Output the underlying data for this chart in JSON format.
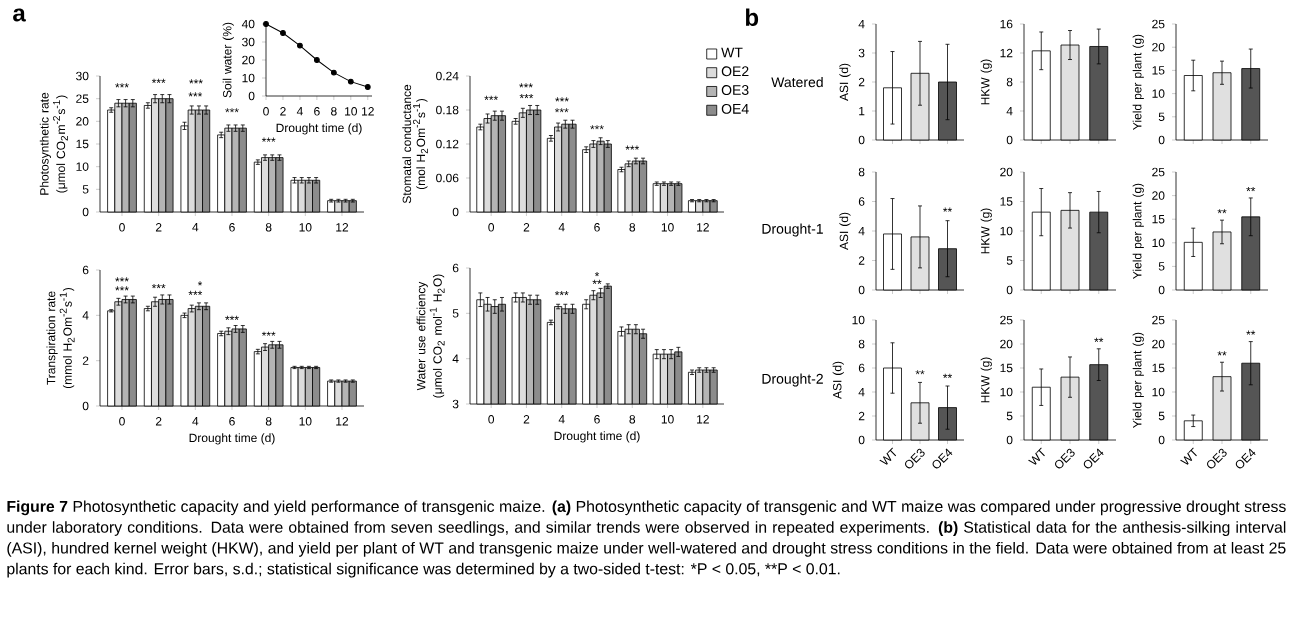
{
  "chart_data": [
    {
      "type": "bar",
      "ylabel": "Photosynthetic rate (μmol CO$_{2}$m$^{-2}$s$^{-1}$)",
      "categories": [
        "0",
        "2",
        "4",
        "6",
        "8",
        "10",
        "12"
      ],
      "ylim": [
        0,
        30
      ],
      "yticks": [
        0,
        5,
        10,
        15,
        20,
        25,
        30
      ],
      "series": [
        {
          "color": "#ffffff",
          "values": [
            22.5,
            23.5,
            19,
            17,
            11,
            7,
            2.5
          ],
          "errors": [
            0.5,
            0.6,
            0.8,
            0.6,
            0.5,
            0.6,
            0.3
          ]
        },
        {
          "color": "#dcdcdc",
          "values": [
            24,
            25,
            22.5,
            18.5,
            12,
            7,
            2.5
          ],
          "errors": [
            0.8,
            0.9,
            0.9,
            0.7,
            0.6,
            0.6,
            0.3
          ]
        },
        {
          "color": "#b4b4b4",
          "values": [
            24,
            25,
            22.5,
            18.5,
            12,
            7,
            2.5
          ],
          "errors": [
            0.8,
            0.9,
            0.9,
            0.7,
            0.6,
            0.6,
            0.3
          ]
        },
        {
          "color": "#8c8c8c",
          "values": [
            24,
            25,
            22.5,
            18.5,
            12,
            7,
            2.5
          ],
          "errors": [
            0.8,
            0.9,
            0.9,
            0.7,
            0.6,
            0.6,
            0.3
          ]
        }
      ],
      "annotations": [
        "a",
        {
          "text": "***",
          "x": "0",
          "y": 26.5
        },
        {
          "text": "***",
          "x": "2",
          "y": 27.5
        },
        {
          "text": "***",
          "x": "4",
          "y": 24.5
        },
        "***",
        {
          "text": "***",
          "x": "6",
          "y": 21
        },
        {
          "text": "***",
          "x": "8",
          "y": 14.5
        }
      ]
    },
    {
      "type": "line",
      "ylabel": "Soil water (%)",
      "xlabel": "Drought time (d)",
      "x": [
        0,
        2,
        4,
        6,
        8,
        10,
        12
      ],
      "values": [
        40,
        35,
        28,
        20,
        13,
        8,
        5
      ],
      "color": "#000000",
      "marker": "circle",
      "xlim": [
        0,
        12.5
      ],
      "xticks": [
        0,
        2,
        4,
        6,
        8,
        10,
        12
      ],
      "ylim": [
        0,
        40
      ],
      "yticks": [
        0,
        10,
        20,
        30,
        40
      ]
    },
    {
      "type": "bar",
      "ylabel": "Stomatal conductance (mol H$_{2}$Om$^{-2}$s$^{-1}$)",
      "categories": [
        "0",
        "2",
        "4",
        "6",
        "8",
        "10",
        "12"
      ],
      "ylim": [
        0,
        0.24
      ],
      "yticks": [
        0,
        0.06,
        0.12,
        0.18,
        0.24
      ],
      "legend": "top right",
      "series": [
        {
          "name": "WT",
          "color": "#ffffff",
          "values": [
            0.15,
            0.16,
            0.13,
            0.11,
            0.075,
            0.05,
            0.02
          ],
          "errors": [
            0.005,
            0.005,
            0.005,
            0.005,
            0.004,
            0.003,
            0.002
          ]
        },
        {
          "name": "OE2",
          "color": "#dcdcdc",
          "values": [
            0.165,
            0.175,
            0.15,
            0.12,
            0.085,
            0.05,
            0.02
          ],
          "errors": [
            0.008,
            0.008,
            0.007,
            0.006,
            0.005,
            0.003,
            0.002
          ]
        },
        {
          "name": "OE3",
          "color": "#b4b4b4",
          "values": [
            0.17,
            0.18,
            0.155,
            0.125,
            0.09,
            0.05,
            0.02
          ],
          "errors": [
            0.008,
            0.008,
            0.007,
            0.006,
            0.005,
            0.003,
            0.002
          ]
        },
        {
          "name": "OE4",
          "color": "#8c8c8c",
          "values": [
            0.17,
            0.18,
            0.155,
            0.12,
            0.09,
            0.05,
            0.02
          ],
          "errors": [
            0.008,
            0.008,
            0.007,
            0.006,
            0.005,
            0.003,
            0.002
          ]
        }
      ],
      "annotations": [
        {
          "text": "***",
          "x": "0",
          "y": 0.19
        },
        {
          "text": "***",
          "x": "2",
          "y": 0.193
        },
        "***",
        {
          "text": "***",
          "x": "4",
          "y": 0.168
        },
        "***",
        {
          "text": "***",
          "x": "6",
          "y": 0.138
        },
        {
          "text": "***",
          "x": "8",
          "y": 0.102
        }
      ]
    },
    {
      "type": "bar",
      "ylabel": "Transpiration rate (mmol H$_{2}$Om$^{-2}$s$^{-1}$)",
      "xlabel": "Drought time (d)",
      "categories": [
        "0",
        "2",
        "4",
        "6",
        "8",
        "10",
        "12"
      ],
      "ylim": [
        0,
        6
      ],
      "yticks": [
        0,
        2,
        4,
        6
      ],
      "series": [
        {
          "color": "#ffffff",
          "values": [
            4.2,
            4.3,
            4.0,
            3.2,
            2.4,
            1.7,
            1.1
          ],
          "errors": [
            0.05,
            0.1,
            0.1,
            0.1,
            0.1,
            0.05,
            0.05
          ]
        },
        {
          "color": "#dcdcdc",
          "values": [
            4.6,
            4.6,
            4.3,
            3.3,
            2.6,
            1.7,
            1.1
          ],
          "errors": [
            0.15,
            0.2,
            0.15,
            0.15,
            0.15,
            0.05,
            0.05
          ]
        },
        {
          "color": "#b4b4b4",
          "values": [
            4.7,
            4.7,
            4.4,
            3.4,
            2.7,
            1.7,
            1.1
          ],
          "errors": [
            0.15,
            0.2,
            0.15,
            0.15,
            0.15,
            0.05,
            0.05
          ]
        },
        {
          "color": "#8c8c8c",
          "values": [
            4.7,
            4.7,
            4.4,
            3.4,
            2.7,
            1.7,
            1.1
          ],
          "errors": [
            0.15,
            0.2,
            0.15,
            0.15,
            0.15,
            0.05,
            0.05
          ]
        }
      ],
      "annotations": [
        {
          "text": "***",
          "x": "0",
          "y": 4.9
        },
        "***",
        {
          "text": "***",
          "x": "2",
          "y": 5.0
        },
        {
          "text": "***",
          "x": "4",
          "y": 4.7
        },
        "*",
        {
          "text": "***",
          "x": "6",
          "y": 3.6
        },
        {
          "text": "***",
          "x": "8",
          "y": 2.9
        }
      ]
    },
    {
      "type": "bar",
      "ylabel": "Water use efficiency (μmol CO$_{2}$ mol$^{-1}$ H$_{2}$O)",
      "xlabel": "Drought time (d)",
      "categories": [
        "0",
        "2",
        "4",
        "6",
        "8",
        "10",
        "12"
      ],
      "ylim": [
        3,
        6
      ],
      "yticks": [
        3,
        4,
        5,
        6
      ],
      "series": [
        {
          "color": "#ffffff",
          "values": [
            5.3,
            5.35,
            4.8,
            5.2,
            4.6,
            4.1,
            3.7
          ],
          "errors": [
            0.15,
            0.1,
            0.05,
            0.1,
            0.1,
            0.1,
            0.05
          ]
        },
        {
          "color": "#dcdcdc",
          "values": [
            5.2,
            5.35,
            5.15,
            5.4,
            4.65,
            4.1,
            3.75
          ],
          "errors": [
            0.15,
            0.1,
            0.05,
            0.1,
            0.1,
            0.1,
            0.05
          ]
        },
        {
          "color": "#b4b4b4",
          "values": [
            5.15,
            5.3,
            5.1,
            5.45,
            4.65,
            4.1,
            3.75
          ],
          "errors": [
            0.15,
            0.1,
            0.1,
            0.1,
            0.1,
            0.1,
            0.05
          ]
        },
        {
          "color": "#8c8c8c",
          "values": [
            5.2,
            5.3,
            5.1,
            5.6,
            4.55,
            4.15,
            3.75
          ],
          "errors": [
            0.15,
            0.1,
            0.1,
            0.05,
            0.1,
            0.1,
            0.05
          ]
        }
      ],
      "annotations": [
        {
          "text": "***",
          "x": "4",
          "y": 5.3
        },
        {
          "text": "**",
          "x": "6",
          "y": 5.55
        },
        {
          "text": "*",
          "x": "6",
          "y": 5.72
        }
      ]
    },
    {
      "type": "bar",
      "ylabel": "ASI (d)",
      "categories": [
        "WT",
        "OE3",
        "OE4"
      ],
      "values": [
        1.8,
        2.3,
        2.0
      ],
      "errors": [
        1.25,
        1.1,
        1.3
      ],
      "colors": [
        "#ffffff",
        "#e0e0e0",
        "#555555"
      ],
      "ylim": [
        0,
        4
      ],
      "yticks": [
        0,
        1,
        2,
        3,
        4
      ],
      "tick_labels": "y",
      "annotations": [
        "b",
        "Watered"
      ]
    },
    {
      "type": "bar",
      "ylabel": "HKW (g)",
      "categories": [
        "WT",
        "OE3",
        "OE4"
      ],
      "values": [
        12.3,
        13.1,
        12.9
      ],
      "errors": [
        2.6,
        2,
        2.4
      ],
      "colors": [
        "#ffffff",
        "#e0e0e0",
        "#555555"
      ],
      "ylim": [
        0,
        16
      ],
      "yticks": [
        0,
        4,
        8,
        12,
        16
      ],
      "tick_labels": "y"
    },
    {
      "type": "bar",
      "ylabel": "Yield per plant (g)",
      "categories": [
        "WT",
        "OE3",
        "OE4"
      ],
      "values": [
        13.9,
        14.5,
        15.4
      ],
      "errors": [
        3.3,
        2.5,
        4.2
      ],
      "colors": [
        "#ffffff",
        "#e0e0e0",
        "#555555"
      ],
      "ylim": [
        0,
        25
      ],
      "yticks": [
        0,
        5,
        10,
        15,
        20,
        25
      ],
      "tick_labels": "y"
    },
    {
      "type": "bar",
      "ylabel": "ASI (d)",
      "categories": [
        "WT",
        "OE3",
        "OE4"
      ],
      "values": [
        3.8,
        3.6,
        2.8
      ],
      "errors": [
        2.4,
        2.1,
        1.9
      ],
      "colors": [
        "#ffffff",
        "#e0e0e0",
        "#555555"
      ],
      "ylim": [
        0,
        8
      ],
      "yticks": [
        0,
        2,
        4,
        6,
        8
      ],
      "tick_labels": "y",
      "annotations": [
        "Drought-1",
        {
          "text": "**",
          "x": "OE4",
          "y": 5.0
        }
      ]
    },
    {
      "type": "bar",
      "ylabel": "HKW (g)",
      "categories": [
        "WT",
        "OE3",
        "OE4"
      ],
      "values": [
        13.2,
        13.5,
        13.2
      ],
      "errors": [
        4,
        3,
        3.5
      ],
      "colors": [
        "#ffffff",
        "#e0e0e0",
        "#555555"
      ],
      "ylim": [
        0,
        20
      ],
      "yticks": [
        0,
        5,
        10,
        15,
        20
      ],
      "tick_labels": "y"
    },
    {
      "type": "bar",
      "ylabel": "Yield per plant (g)",
      "categories": [
        "WT",
        "OE3",
        "OE4"
      ],
      "values": [
        10.1,
        12.3,
        15.5
      ],
      "errors": [
        3,
        2.5,
        4
      ],
      "colors": [
        "#ffffff",
        "#e0e0e0",
        "#555555"
      ],
      "ylim": [
        0,
        25
      ],
      "yticks": [
        0,
        5,
        10,
        15,
        20,
        25
      ],
      "tick_labels": "y",
      "annotations": [
        {
          "text": "**",
          "x": "OE3",
          "y": 15.3
        },
        {
          "text": "**",
          "x": "OE4",
          "y": 20
        }
      ]
    },
    {
      "type": "bar",
      "ylabel": "ASI (d)",
      "categories": [
        "WT",
        "OE3",
        "OE4"
      ],
      "values": [
        6.0,
        3.1,
        2.7
      ],
      "errors": [
        2.1,
        1.7,
        1.8
      ],
      "colors": [
        "#ffffff",
        "#e0e0e0",
        "#555555"
      ],
      "ylim": [
        0,
        10
      ],
      "yticks": [
        0,
        2,
        4,
        6,
        8,
        10
      ],
      "annotations": [
        "Drought-2",
        {
          "text": "**",
          "x": "OE3",
          "y": 5.1
        },
        {
          "text": "**",
          "x": "OE4",
          "y": 4.8
        }
      ]
    },
    {
      "type": "bar",
      "ylabel": "HKW (g)",
      "categories": [
        "WT",
        "OE3",
        "OE4"
      ],
      "values": [
        11,
        13.1,
        15.7
      ],
      "errors": [
        3.8,
        4.2,
        3.3
      ],
      "colors": [
        "#ffffff",
        "#e0e0e0",
        "#555555"
      ],
      "ylim": [
        0,
        25
      ],
      "yticks": [
        0,
        5,
        10,
        15,
        20,
        25
      ],
      "annotations": [
        {
          "text": "**",
          "x": "OE4",
          "y": 19.5
        }
      ]
    },
    {
      "type": "bar",
      "ylabel": "Yield per plant (g)",
      "categories": [
        "WT",
        "OE3",
        "OE4"
      ],
      "values": [
        4,
        13.2,
        16
      ],
      "errors": [
        1.2,
        3,
        4.5
      ],
      "colors": [
        "#ffffff",
        "#e0e0e0",
        "#555555"
      ],
      "ylim": [
        0,
        25
      ],
      "yticks": [
        0,
        5,
        10,
        15,
        20,
        25
      ],
      "annotations": [
        {
          "text": "**",
          "x": "OE3",
          "y": 16.7
        },
        {
          "text": "**",
          "x": "OE4",
          "y": 21
        }
      ]
    },
    {
      "type": "other",
      "annotations": [
        "**Figure 7** Photosynthetic capacity and yield performance of transgenic maize. **(a)** Photosynthetic capacity of transgenic and WT maize was compared under progressive drought stress under laboratory conditions. Data were obtained from seven seedlings, and similar trends were observed in repeated experiments. **(b)** Statistical data for the anthesis-silking interval (ASI), hundred kernel weight (HKW), and yield per plant of WT and transgenic maize under well-watered and drought stress conditions in the field. Data were obtained from at least 25 plants for each kind. Error bars, s.d.; statistical significance was determined by a two-sided t-test: *P < 0.05, **P < 0.01."
      ]
    }
  ]
}
